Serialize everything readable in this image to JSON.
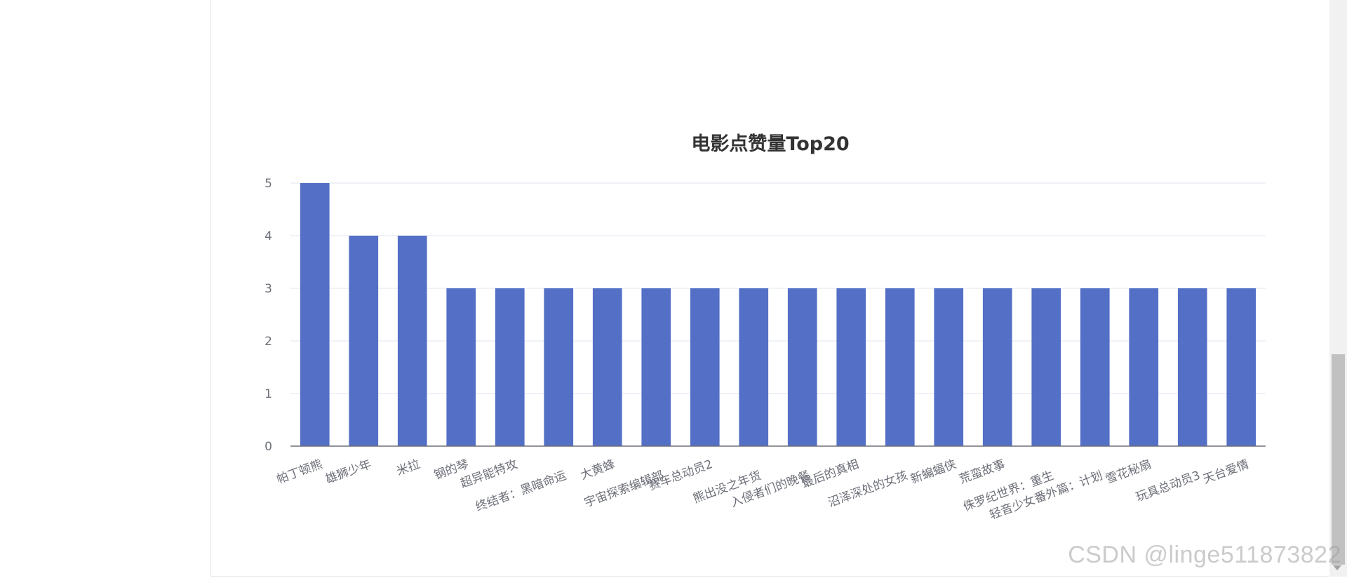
{
  "watermark": "CSDN @linge511873822",
  "chart_data": {
    "type": "bar",
    "title": "电影点赞量Top20",
    "xlabel": "",
    "ylabel": "",
    "ylim": [
      0,
      5
    ],
    "yticks": [
      0,
      1,
      2,
      3,
      4,
      5
    ],
    "grid": true,
    "bar_color": "#5470c6",
    "categories": [
      "帕丁顿熊",
      "雄狮少年",
      "米拉",
      "钢的琴",
      "超异能特攻",
      "终结者：黑暗命运",
      "大黄蜂",
      "宇宙探索编辑部",
      "赛车总动员2",
      "熊出没之年货",
      "入侵者们的晚餐",
      "最后的真相",
      "沼泽深处的女孩",
      "新蝙蝠侠",
      "荒蛮故事",
      "侏罗纪世界：重生",
      "轻音少女番外篇：计划",
      "雪花秘扇",
      "玩具总动员3",
      "天台爱情"
    ],
    "values": [
      5,
      4,
      4,
      3,
      3,
      3,
      3,
      3,
      3,
      3,
      3,
      3,
      3,
      3,
      3,
      3,
      3,
      3,
      3,
      3
    ]
  }
}
